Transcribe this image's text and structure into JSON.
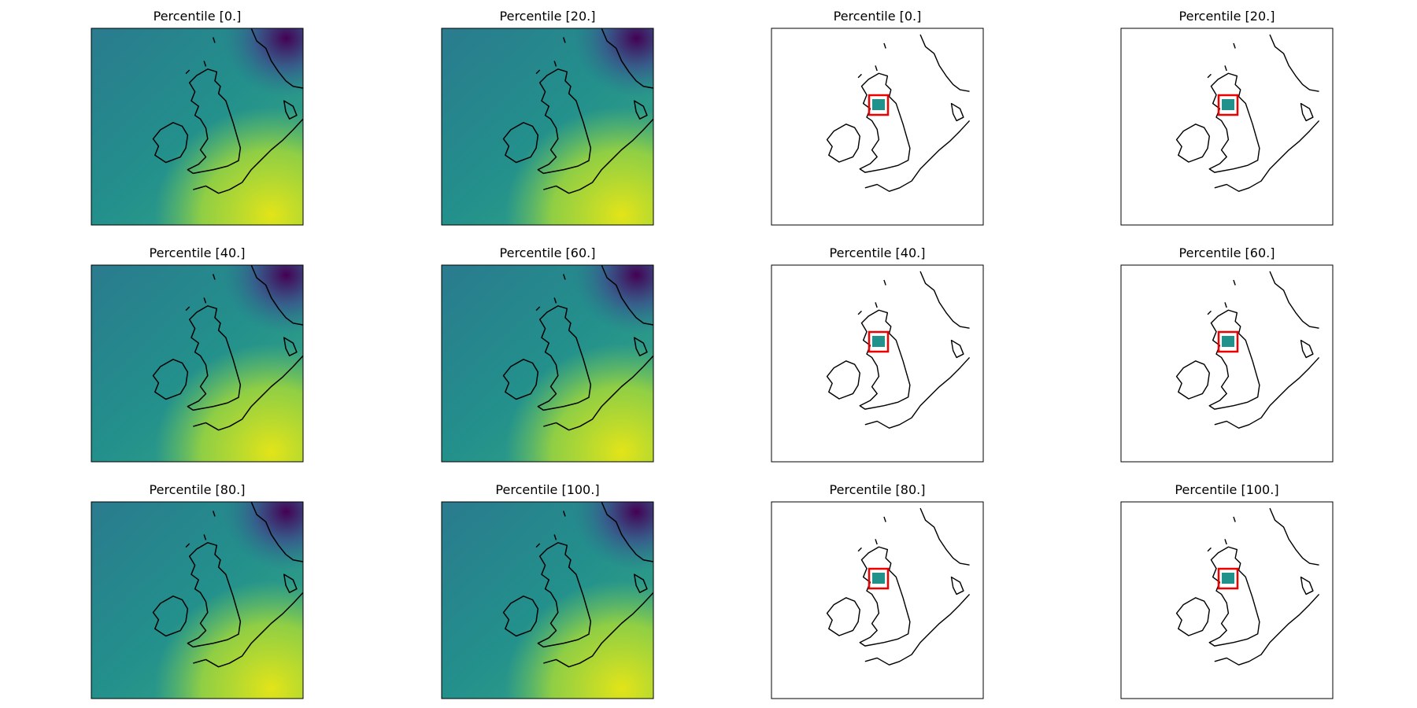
{
  "panels": [
    {
      "title": "Percentile [0.]"
    },
    {
      "title": "Percentile [20.]"
    },
    {
      "title": "Percentile [0.]"
    },
    {
      "title": "Percentile [20.]"
    },
    {
      "title": "Percentile [40.]"
    },
    {
      "title": "Percentile [60.]"
    },
    {
      "title": "Percentile [40.]"
    },
    {
      "title": "Percentile [60.]"
    },
    {
      "title": "Percentile [80.]"
    },
    {
      "title": "Percentile [100.]"
    },
    {
      "title": "Percentile [80.]"
    },
    {
      "title": "Percentile [100.]"
    }
  ]
}
